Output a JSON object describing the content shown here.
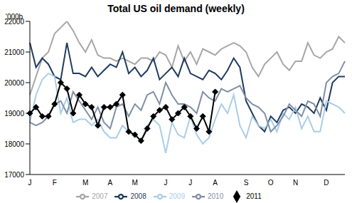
{
  "chart_data": {
    "type": "line",
    "title": "Total US oil demand (weekly)",
    "y_label": "'000b",
    "categories": [
      "J",
      null,
      null,
      null,
      "F",
      null,
      null,
      null,
      null,
      "M",
      null,
      null,
      null,
      "A",
      null,
      null,
      null,
      "M",
      null,
      null,
      null,
      null,
      "J",
      null,
      null,
      null,
      "J",
      null,
      null,
      null,
      "A",
      null,
      null,
      null,
      null,
      "S",
      null,
      null,
      null,
      "O",
      null,
      null,
      null,
      "N",
      null,
      null,
      null,
      null,
      "D",
      null,
      null,
      null
    ],
    "ylim": [
      17000,
      22000
    ],
    "yticks": [
      17000,
      18000,
      19000,
      20000,
      21000,
      22000
    ],
    "grid": false,
    "legend": "bottom",
    "series": [
      {
        "name": "2007",
        "color": "#a6a6a6",
        "marker": "none",
        "values": [
          19600,
          20200,
          20800,
          21000,
          21600,
          21800,
          22000,
          21700,
          21300,
          21000,
          21400,
          20900,
          20800,
          20800,
          20700,
          20800,
          20700,
          20600,
          20800,
          20800,
          20700,
          21000,
          20900,
          20500,
          21200,
          20700,
          21000,
          20600,
          21100,
          21000,
          20900,
          21100,
          21200,
          21300,
          21200,
          21000,
          20500,
          20200,
          20600,
          20800,
          21000,
          20600,
          20400,
          20700,
          20700,
          21300,
          20900,
          20800,
          21000,
          21100,
          21500,
          21300
        ]
      },
      {
        "name": "2008",
        "color": "#1f3a5f",
        "marker": "none",
        "values": [
          21300,
          20500,
          20800,
          20600,
          20200,
          20100,
          21300,
          20300,
          20300,
          20200,
          20500,
          20200,
          20400,
          20600,
          20500,
          21000,
          20300,
          20500,
          20200,
          20400,
          20800,
          20100,
          20300,
          20500,
          20200,
          20800,
          20300,
          20200,
          20100,
          20400,
          20300,
          20100,
          20400,
          20800,
          20500,
          19400,
          19000,
          18600,
          18400,
          18900,
          18700,
          19100,
          19200,
          19000,
          19300,
          19200,
          19000,
          19500,
          19100,
          20000,
          20200,
          20200
        ]
      },
      {
        "name": "2009",
        "color": "#a9cde8",
        "marker": "none",
        "values": [
          18700,
          19600,
          20100,
          20300,
          20200,
          19000,
          19500,
          18700,
          18800,
          18800,
          18600,
          18800,
          18400,
          18200,
          18200,
          18600,
          18400,
          18300,
          18100,
          18600,
          18800,
          18600,
          17700,
          18700,
          18300,
          18200,
          18900,
          18300,
          18000,
          18200,
          18800,
          19300,
          19000,
          19600,
          18600,
          18200,
          18900,
          18600,
          18500,
          18800,
          18400,
          19000,
          18800,
          19200,
          18500,
          18900,
          18400,
          18400,
          19400,
          19300,
          19200,
          19000
        ]
      },
      {
        "name": "2010",
        "color": "#7f8fa6",
        "marker": "none",
        "values": [
          18700,
          18600,
          18700,
          18900,
          19300,
          19400,
          19000,
          19700,
          19400,
          19100,
          18800,
          19200,
          18700,
          18500,
          19200,
          19300,
          18900,
          19300,
          19100,
          19600,
          19700,
          19300,
          20000,
          19600,
          19300,
          19300,
          19200,
          19000,
          19700,
          19500,
          19400,
          19800,
          19700,
          19800,
          19900,
          19500,
          19300,
          19200,
          19000,
          18400,
          18600,
          18900,
          19300,
          19100,
          18900,
          19400,
          19300,
          18900,
          20000,
          20200,
          20300,
          20700
        ]
      },
      {
        "name": "2011",
        "color": "#000000",
        "marker": "diamond",
        "values": [
          19000,
          19200,
          18900,
          18900,
          19300,
          20000,
          19800,
          19000,
          19600,
          19300,
          19200,
          18600,
          19200,
          19200,
          19300,
          19600,
          18400,
          18300,
          18100,
          18500,
          18900,
          19100,
          19200,
          18800,
          19000,
          19200,
          18900,
          18500,
          18900,
          18400,
          19700,
          null,
          null,
          null,
          null,
          null,
          null,
          null,
          null,
          null,
          null,
          null,
          null,
          null,
          null,
          null,
          null,
          null,
          null,
          null,
          null,
          null
        ]
      }
    ]
  }
}
